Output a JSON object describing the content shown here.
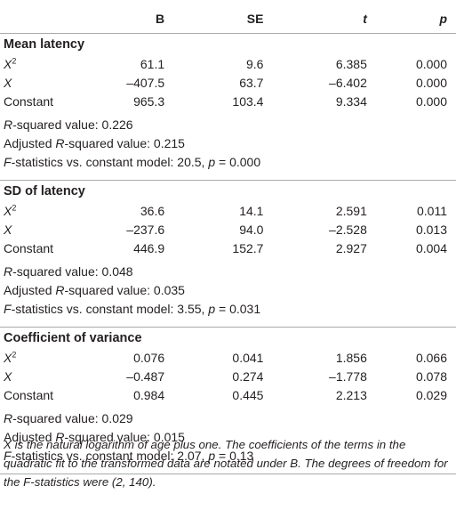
{
  "header": {
    "col0": "",
    "b": "B",
    "se": "SE",
    "t": "t",
    "p": "p"
  },
  "sections": [
    {
      "title": "Mean latency",
      "rows": [
        {
          "term": "X",
          "sup": "2",
          "b": "61.1",
          "se": "9.6",
          "t": "6.385",
          "p": "0.000"
        },
        {
          "term": "X",
          "sup": "",
          "b": "–407.5",
          "se": "63.7",
          "t": "–6.402",
          "p": "0.000"
        },
        {
          "term": "Constant",
          "sup": "",
          "b": "965.3",
          "se": "103.4",
          "t": "9.334",
          "p": "0.000"
        }
      ],
      "r_squared": "0.226",
      "adj_r_squared": "0.215",
      "f_value": "20.5",
      "f_p": "0.000"
    },
    {
      "title": "SD of latency",
      "rows": [
        {
          "term": "X",
          "sup": "2",
          "b": "36.6",
          "se": "14.1",
          "t": "2.591",
          "p": "0.011"
        },
        {
          "term": "X",
          "sup": "",
          "b": "–237.6",
          "se": "94.0",
          "t": "–2.528",
          "p": "0.013"
        },
        {
          "term": "Constant",
          "sup": "",
          "b": "446.9",
          "se": "152.7",
          "t": "2.927",
          "p": "0.004"
        }
      ],
      "r_squared": "0.048",
      "adj_r_squared": "0.035",
      "f_value": "3.55",
      "f_p": "0.031"
    },
    {
      "title": "Coefficient of variance",
      "rows": [
        {
          "term": "X",
          "sup": "2",
          "b": "0.076",
          "se": "0.041",
          "t": "1.856",
          "p": "0.066"
        },
        {
          "term": "X",
          "sup": "",
          "b": "–0.487",
          "se": "0.274",
          "t": "–1.778",
          "p": "0.078"
        },
        {
          "term": "Constant",
          "sup": "",
          "b": "0.984",
          "se": "0.445",
          "t": "2.213",
          "p": "0.029"
        }
      ],
      "r_squared": "0.029",
      "adj_r_squared": "0.015",
      "f_value": "2.07",
      "f_p": "0.13"
    }
  ],
  "labels": {
    "r_squared_pre": "R",
    "r_squared_post": "-squared value: ",
    "adj_pre": "Adjusted ",
    "adj_r": "R",
    "adj_post": "-squared value: ",
    "f_letter": "F",
    "f_mid": "-statistics vs. constant model: ",
    "f_p_letter": "p",
    "f_eq": " = "
  },
  "footnote": "X is the natural logarithm of age plus one. The coefficients of the terms in the quadratic fit to the transformed data are notated under B. The degrees of freedom for the F-statistics were (2, 140)."
}
